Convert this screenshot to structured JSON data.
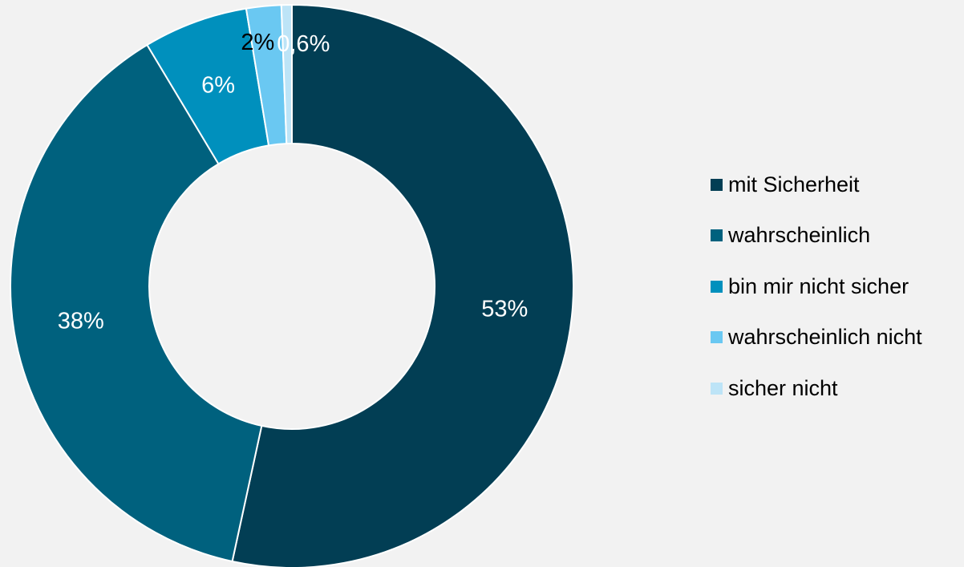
{
  "chart_data": {
    "type": "pie",
    "variant": "donut",
    "title": "",
    "legend_position": "right",
    "slices": [
      {
        "name": "mit Sicherheit",
        "value": 53.4,
        "label": "53%",
        "color": "#023e54",
        "label_color": "#ffffff"
      },
      {
        "name": "wahrscheinlich",
        "value": 38.0,
        "label": "38%",
        "color": "#00617e",
        "label_color": "#ffffff"
      },
      {
        "name": "bin mir nicht sicher",
        "value": 6.0,
        "label": "6%",
        "color": "#0090bd",
        "label_color": "#ffffff"
      },
      {
        "name": "wahrscheinlich nicht",
        "value": 2.0,
        "label": "2%",
        "color": "#6ac8f2",
        "label_color": "#000000"
      },
      {
        "name": "sicher nicht",
        "value": 0.6,
        "label": "0,6%",
        "color": "#bde4f7",
        "label_color": "#ffffff"
      }
    ]
  }
}
